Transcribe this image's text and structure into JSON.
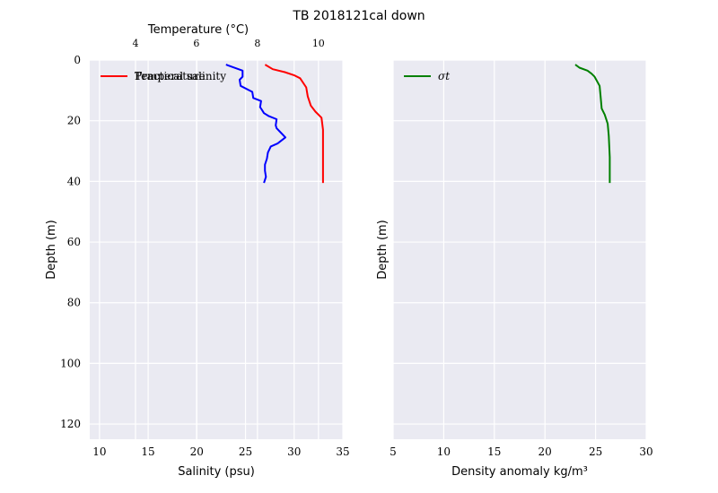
{
  "figure": {
    "title": "TB 2018121cal down"
  },
  "chart_data": [
    {
      "type": "line",
      "panel": "left",
      "title": "",
      "xlabel": "Salinity (psu)",
      "ylabel": "Depth (m)",
      "xlim": [
        9,
        35
      ],
      "ylim": [
        125,
        0
      ],
      "y_inverted": true,
      "xticks": [
        10,
        15,
        20,
        25,
        30,
        35
      ],
      "yticks": [
        0,
        20,
        40,
        60,
        80,
        100,
        120
      ],
      "grid": true,
      "legend_location": "top-left",
      "twin_top_axis": {
        "xlabel": "Temperature (°C)",
        "xlim": [
          2.5,
          10.8
        ],
        "xticks": [
          4,
          6,
          8,
          10
        ]
      },
      "series": [
        {
          "name": "Practical salinity",
          "axis": "bottom",
          "color": "#0000ff",
          "x": [
            23.0,
            24.7,
            24.7,
            24.4,
            24.5,
            25.7,
            25.8,
            26.6,
            26.5,
            26.7,
            26.9,
            27.4,
            28.2,
            28.1,
            28.2,
            28.5,
            29.1,
            28.3,
            27.6,
            27.3,
            27.2,
            27.0,
            27.0,
            27.1,
            26.9
          ],
          "y": [
            1.5,
            3.5,
            5.5,
            6.5,
            8.5,
            10.5,
            12.5,
            13.5,
            15.5,
            16.5,
            17.5,
            18.5,
            19.5,
            21.5,
            22.5,
            23.5,
            25.5,
            27.5,
            28.5,
            30.5,
            32.5,
            34.5,
            36.5,
            38.5,
            40.5
          ]
        },
        {
          "name": "Temperature",
          "axis": "top",
          "color": "#ff0000",
          "x": [
            8.25,
            8.5,
            8.9,
            9.2,
            9.4,
            9.6,
            9.65,
            9.75,
            9.9,
            10.1,
            10.15,
            10.15,
            10.15,
            10.15
          ],
          "y": [
            1.5,
            3,
            4,
            5,
            6,
            9,
            12,
            15,
            17,
            19,
            23,
            28,
            35,
            40.5
          ]
        }
      ]
    },
    {
      "type": "line",
      "panel": "right",
      "title": "",
      "xlabel": "Density anomaly kg/m³",
      "ylabel": "Depth (m)",
      "xlim": [
        5,
        30
      ],
      "ylim": [
        125,
        0
      ],
      "y_inverted": true,
      "xticks": [
        5,
        10,
        15,
        20,
        25,
        30
      ],
      "grid": true,
      "legend_location": "top-left",
      "series": [
        {
          "name": "σt",
          "color": "#008000",
          "x": [
            23.0,
            23.4,
            24.2,
            24.6,
            24.9,
            25.4,
            25.5,
            25.6,
            25.9,
            26.2,
            26.3,
            26.4,
            26.4
          ],
          "y": [
            1.5,
            2.5,
            3.5,
            4.5,
            5.5,
            8.5,
            12,
            16,
            18,
            21,
            25,
            32,
            40.5
          ]
        }
      ]
    }
  ]
}
